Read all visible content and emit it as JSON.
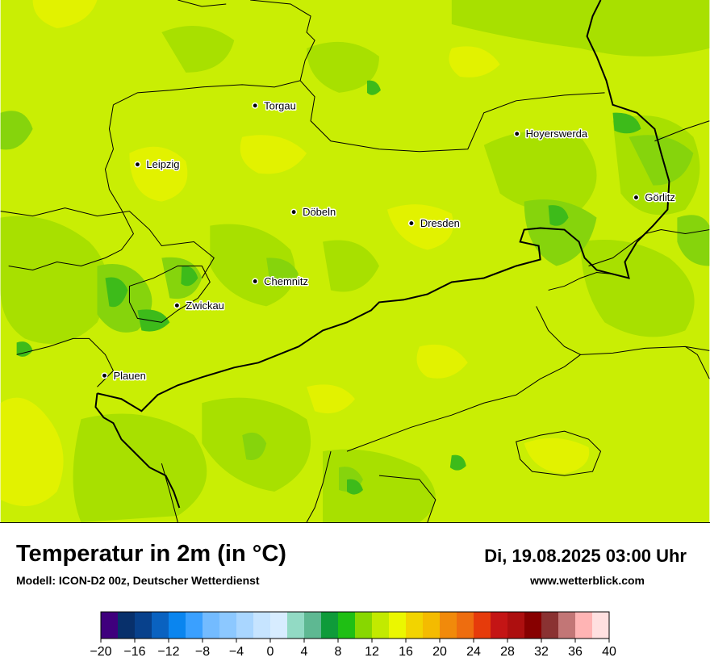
{
  "map": {
    "cities": [
      {
        "name": "Torgau"
      },
      {
        "name": "Leipzig"
      },
      {
        "name": "Hoyerswerda"
      },
      {
        "name": "Görlitz"
      },
      {
        "name": "Döbeln"
      },
      {
        "name": "Dresden"
      },
      {
        "name": "Chemnitz"
      },
      {
        "name": "Zwickau"
      },
      {
        "name": "Plauen"
      }
    ],
    "colors": {
      "base": "#c9ee04",
      "warm": "#e2f200",
      "mid": "#a8e000",
      "cool": "#86d40c",
      "cold": "#3dbb1a"
    }
  },
  "header": {
    "title": "Temperatur in 2m (in °C)",
    "subtitle": "Modell: ICON-D2 00z, Deutscher Wetterdienst",
    "datetime": "Di, 19.08.2025 03:00 Uhr",
    "website": "www.wetterblick.com"
  },
  "legend": {
    "colors": [
      "#3f007d",
      "#08306b",
      "#08418c",
      "#0a62c0",
      "#0a85ef",
      "#3aa0ff",
      "#73bbff",
      "#8cc8ff",
      "#a9d6ff",
      "#c6e4ff",
      "#d7ecff",
      "#92dac4",
      "#5eb892",
      "#0f9b3a",
      "#1fbf14",
      "#88d700",
      "#c2ea00",
      "#ebf700",
      "#f2d400",
      "#f4bb00",
      "#f18a0b",
      "#ee6d0f",
      "#e63b0b",
      "#c41515",
      "#ad0f0f",
      "#870000",
      "#8a3232",
      "#c27676",
      "#ffb4b4",
      "#ffe0e0"
    ],
    "tick_labels": [
      "−20",
      "−16",
      "−12",
      "−8",
      "−4",
      "0",
      "4",
      "8",
      "12",
      "16",
      "20",
      "24",
      "28",
      "32",
      "36",
      "40"
    ]
  }
}
